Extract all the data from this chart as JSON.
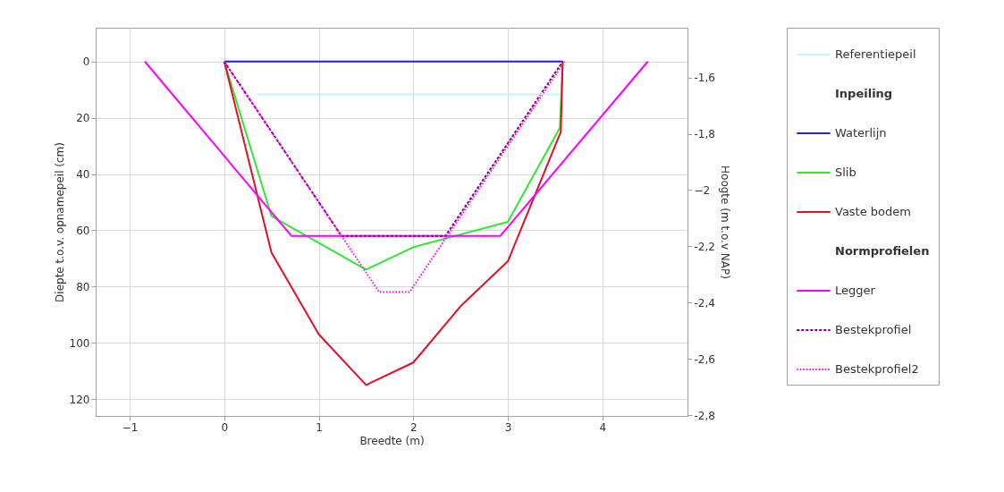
{
  "chart_data": {
    "type": "line",
    "xlabel": "Breedte (m)",
    "ylabel": "Diepte t.o.v. opnamepeil (cm)",
    "y2label": "Hoogte (m t.o.v NAP)",
    "xlim": [
      -1.36,
      4.9
    ],
    "xticks": [
      -1,
      0,
      1,
      2,
      3,
      4
    ],
    "ylim": [
      126,
      -12
    ],
    "yticks": [
      0,
      20,
      40,
      60,
      80,
      100,
      120
    ],
    "y2lim": [
      -2.803,
      -1.423
    ],
    "y2ticks": [
      {
        "value": -1.6,
        "label": "-1,6"
      },
      {
        "value": -1.8,
        "label": "-1,8"
      },
      -2,
      {
        "value": -2.2,
        "label": "-2,2"
      },
      {
        "value": -2.4,
        "label": "-2,4"
      },
      {
        "value": -2.6,
        "label": "-2,6"
      },
      {
        "value": -2.8,
        "label": "-2,8"
      }
    ],
    "grid": true,
    "legend": "right",
    "marker": "none",
    "series": [
      {
        "name": "Referentiepeil",
        "color": "#c8f0ff",
        "axis": "y2",
        "line_style": "solid",
        "x": [
          0.35,
          3.55
        ],
        "values": [
          -1.66,
          -1.66
        ]
      },
      {
        "name": "Inpeiling"
      },
      {
        "name": "Waterlijn",
        "color": "#2a1ee0",
        "line_style": "solid",
        "x": [
          0,
          3.58
        ],
        "values": [
          0,
          0
        ]
      },
      {
        "name": "Slib",
        "color": "#33e633",
        "line_style": "solid",
        "x": [
          0,
          0.5,
          1.5,
          2.0,
          3.0,
          3.55,
          3.58
        ],
        "values": [
          0,
          55,
          74,
          66,
          57,
          23.5,
          0
        ]
      },
      {
        "name": "Vaste bodem",
        "color": "#e0102a",
        "line_style": "solid",
        "x": [
          0,
          0.5,
          1.0,
          1.5,
          2.0,
          2.5,
          3.0,
          3.56,
          3.58
        ],
        "values": [
          0,
          68,
          97,
          115,
          107,
          87,
          71,
          25,
          0
        ]
      },
      {
        "name": "Normprofielen"
      },
      {
        "name": "Legger",
        "color": "#ff00ff",
        "line_style": "solid",
        "x": [
          -0.84,
          0.71,
          2.92,
          4.48
        ],
        "values": [
          0,
          62,
          62,
          0
        ]
      },
      {
        "name": "Bestekprofiel",
        "color": "#800080",
        "line_style": "dashed",
        "x": [
          0,
          1.24,
          2.34,
          3.58
        ],
        "values": [
          0,
          62,
          62,
          0
        ]
      },
      {
        "name": "Bestekprofiel2",
        "color": "#ff00ff",
        "line_style": "dotted",
        "x": [
          0,
          1.64,
          1.96,
          3.6
        ],
        "values": [
          0,
          82,
          82,
          0
        ]
      }
    ]
  }
}
